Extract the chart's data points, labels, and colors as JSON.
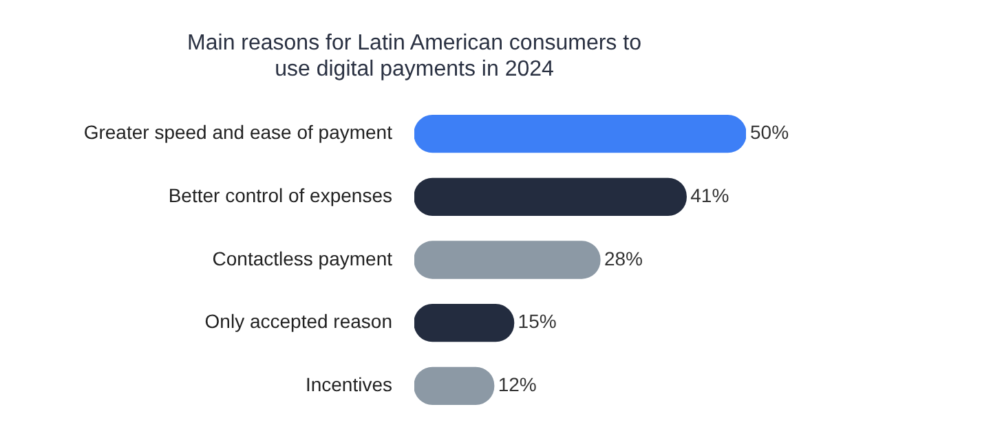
{
  "chart_data": {
    "type": "bar",
    "orientation": "horizontal",
    "title": "Main reasons for Latin American consumers to use digital payments in 2024",
    "categories": [
      "Greater speed and ease of payment",
      "Better control of expenses",
      "Contactless payment",
      "Only accepted reason",
      "Incentives"
    ],
    "values": [
      50,
      41,
      28,
      15,
      12
    ],
    "colors": [
      "#3d7ff6",
      "#232c3f",
      "#8c99a5",
      "#232c3f",
      "#8c99a5"
    ],
    "value_labels": [
      "50%",
      "41%",
      "28%",
      "15%",
      "12%"
    ],
    "tick_labels": "y"
  }
}
